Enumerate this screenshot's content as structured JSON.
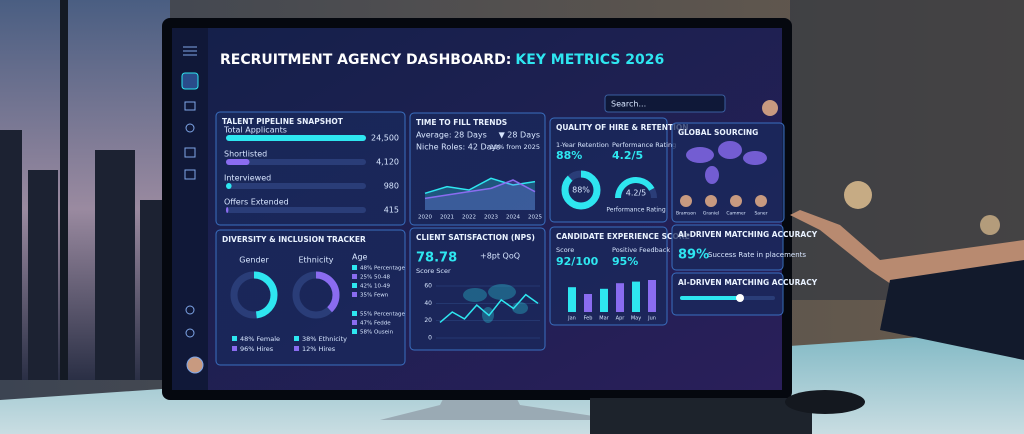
{
  "header": {
    "title": "RECRUITMENT AGENCY DASHBOARD:",
    "title_accent": "KEY METRICS 2026",
    "search": "Search..."
  },
  "pipeline": {
    "title": "TALENT PIPELINE SNAPSHOT",
    "rows": [
      {
        "label": "Total Applicants",
        "value": {
          "value": 24500,
          "label": "24,500"
        }
      },
      {
        "label": "Shortlisted",
        "value": {
          "value": 4120,
          "label": "4,120"
        }
      },
      {
        "label": "Interviewed",
        "value": 980
      },
      {
        "label": "Offers Extended",
        "value": 415
      }
    ]
  },
  "time_to_fill": {
    "title": "TIME TO FILL TRENDS",
    "average": "Average: 28 Days",
    "niche": "Niche Roles: 42 Days",
    "change": "▼ 28 Days",
    "change_note": "-19% from 2025",
    "categories": [
      "2020",
      "2021",
      "2022",
      "2023",
      "2024",
      "2025"
    ],
    "ylim": [
      0,
      60
    ],
    "series": [
      {
        "color": "#2ee6f0",
        "values": [
          20,
          28,
          24,
          38,
          30,
          34
        ]
      },
      {
        "color": "#8a6cf0",
        "values": [
          14,
          18,
          22,
          26,
          36,
          22
        ]
      }
    ]
  },
  "quality": {
    "title": "QUALITY OF HIRE & RETENTION",
    "retention": {
      "label": "1-Year Retention",
      "value": 88,
      "value_label": "88%"
    },
    "rating": {
      "label": "Performance Rating",
      "value": 4.2,
      "max": 5,
      "value_label": "4.2/5"
    },
    "gauge_caption": "Performance Rating"
  },
  "sourcing": {
    "title": "GLOBAL SOURCING",
    "people": [
      "Bramson",
      "Graniel",
      "Cammer",
      "Saner"
    ]
  },
  "diversity": {
    "title": "DIVERSITY & INCLUSION TRACKER",
    "gender": {
      "label": "Gender",
      "value": 48,
      "legend": [
        "48% Female",
        "96% Hires"
      ]
    },
    "ethnicity": {
      "label": "Ethnicity",
      "value": 38,
      "legend": [
        "38% Ethnicity",
        "12% Hires"
      ]
    },
    "age": {
      "label": "Age",
      "legend": [
        "48% Percentage",
        "25% 50-48",
        "42% 10-49",
        "35% Fewn",
        "55% Percentage",
        "47% Fedde",
        "58% Ousein"
      ]
    }
  },
  "nps": {
    "title": "CLIENT SATISFACTION (NPS)",
    "score": "78.78",
    "change": "+8pt QoQ",
    "caption": "Score Scer",
    "ylim": [
      0,
      60
    ],
    "yticks": [
      60,
      40,
      20,
      0
    ],
    "values": [
      18,
      30,
      22,
      38,
      26,
      44,
      34,
      50,
      40
    ]
  },
  "candidate": {
    "title": "CANDIDATE EXPERIENCE SCORE",
    "score_label": "Score",
    "score": "92/100",
    "feedback_label": "Positive Feedback",
    "feedback": "95%",
    "categories": [
      "Jan",
      "Feb",
      "Mar",
      "Apr",
      "May",
      "Jun"
    ],
    "ylim": [
      0,
      100
    ],
    "values": [
      62,
      45,
      58,
      72,
      76,
      80
    ]
  },
  "matching": {
    "title": "AI-DRIVEN MATCHING ACCURACY",
    "value": "89%",
    "note": "Success Rate in placements",
    "title_2": "AI-DRIVEN MATCHING ACCURACY"
  }
}
